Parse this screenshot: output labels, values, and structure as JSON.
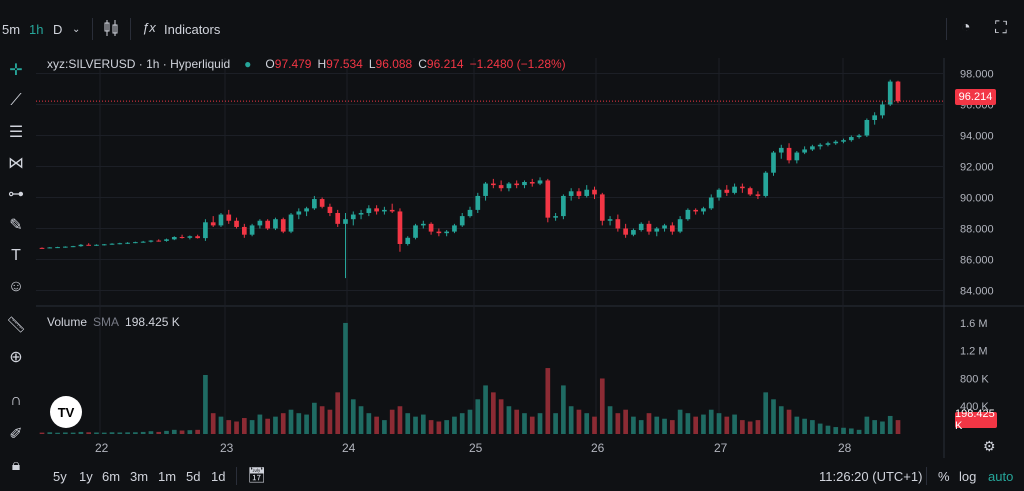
{
  "toolbar": {
    "intervals": [
      "5m",
      "1h",
      "D"
    ],
    "active_interval": "1h",
    "indicators_label": "Indicators"
  },
  "legend": {
    "symbol": "xyz:SILVERUSD · 1h · Hyperliquid",
    "open_label": "O",
    "open": "97.479",
    "high_label": "H",
    "high": "97.534",
    "low_label": "L",
    "low": "96.088",
    "close_label": "C",
    "close": "96.214",
    "change": "−1.2480 (−1.28%)"
  },
  "volume_legend": {
    "label": "Volume",
    "sma_label": "SMA",
    "sma_value": "198.425 K"
  },
  "price_axis": [
    "98.000",
    "96.000",
    "94.000",
    "92.000",
    "90.000",
    "88.000",
    "86.000",
    "84.000"
  ],
  "volume_axis": [
    "1.6 M",
    "1.2 M",
    "800 K",
    "400 K"
  ],
  "last_price_tag": "96.214",
  "volume_tag": "198.425 K",
  "time_axis": [
    "22",
    "23",
    "24",
    "25",
    "26",
    "27",
    "28"
  ],
  "bottom": {
    "ranges": [
      "5y",
      "1y",
      "6m",
      "3m",
      "1m",
      "5d",
      "1d"
    ],
    "clock": "11:26:20 (UTC+1)",
    "percent": "%",
    "log": "log",
    "auto": "auto"
  },
  "logo_text": "TV",
  "colors": {
    "up": "#26a69a",
    "down": "#f23645",
    "up_vol": "#1f6b63",
    "down_vol": "#8c2b34",
    "background": "#0f1114",
    "grid": "#1c1f26"
  },
  "chart_data": {
    "type": "candlestick",
    "symbol": "xyz:SILVERUSD",
    "interval": "1h",
    "price_range": [
      83.0,
      99.0
    ],
    "volume_range": [
      0,
      1700000
    ],
    "x_days": [
      "22",
      "23",
      "24",
      "25",
      "26",
      "27",
      "28"
    ],
    "candles": [
      [
        86.75,
        86.78,
        86.7,
        86.74,
        20000
      ],
      [
        86.74,
        86.8,
        86.72,
        86.78,
        25000
      ],
      [
        86.78,
        86.82,
        86.74,
        86.8,
        18000
      ],
      [
        86.8,
        86.85,
        86.76,
        86.83,
        22000
      ],
      [
        86.83,
        86.88,
        86.8,
        86.86,
        20000
      ],
      [
        86.86,
        87.0,
        86.82,
        86.95,
        30000
      ],
      [
        86.95,
        87.05,
        86.9,
        86.92,
        25000
      ],
      [
        86.92,
        86.98,
        86.88,
        86.95,
        22000
      ],
      [
        86.95,
        87.0,
        86.9,
        86.98,
        20000
      ],
      [
        86.98,
        87.05,
        86.95,
        87.02,
        25000
      ],
      [
        87.02,
        87.08,
        86.98,
        87.05,
        22000
      ],
      [
        87.05,
        87.12,
        87.0,
        87.08,
        24000
      ],
      [
        87.08,
        87.15,
        87.05,
        87.12,
        25000
      ],
      [
        87.12,
        87.2,
        87.08,
        87.15,
        30000
      ],
      [
        87.15,
        87.25,
        87.1,
        87.22,
        40000
      ],
      [
        87.22,
        87.3,
        87.15,
        87.2,
        30000
      ],
      [
        87.2,
        87.35,
        87.15,
        87.3,
        45000
      ],
      [
        87.3,
        87.5,
        87.25,
        87.45,
        60000
      ],
      [
        87.45,
        87.6,
        87.35,
        87.4,
        50000
      ],
      [
        87.4,
        87.55,
        87.3,
        87.5,
        55000
      ],
      [
        87.5,
        87.6,
        87.35,
        87.38,
        60000
      ],
      [
        87.38,
        88.6,
        87.2,
        88.4,
        850000
      ],
      [
        88.4,
        88.8,
        88.1,
        88.2,
        300000
      ],
      [
        88.2,
        89.0,
        88.1,
        88.9,
        250000
      ],
      [
        88.9,
        89.2,
        88.3,
        88.5,
        200000
      ],
      [
        88.5,
        88.7,
        88.0,
        88.1,
        180000
      ],
      [
        88.1,
        88.3,
        87.4,
        87.6,
        230000
      ],
      [
        87.6,
        88.3,
        87.5,
        88.2,
        200000
      ],
      [
        88.2,
        88.6,
        88.0,
        88.5,
        280000
      ],
      [
        88.5,
        88.6,
        87.9,
        88.0,
        220000
      ],
      [
        88.0,
        88.7,
        87.9,
        88.6,
        250000
      ],
      [
        88.6,
        88.7,
        87.7,
        87.8,
        300000
      ],
      [
        87.8,
        89.0,
        87.7,
        88.9,
        350000
      ],
      [
        88.9,
        89.3,
        88.6,
        89.1,
        300000
      ],
      [
        89.1,
        89.4,
        88.8,
        89.3,
        280000
      ],
      [
        89.3,
        90.1,
        89.2,
        89.9,
        450000
      ],
      [
        89.9,
        90.0,
        89.3,
        89.4,
        400000
      ],
      [
        89.4,
        89.6,
        88.8,
        89.0,
        350000
      ],
      [
        89.0,
        89.2,
        88.1,
        88.3,
        600000
      ],
      [
        88.3,
        89.0,
        84.8,
        88.6,
        1600000
      ],
      [
        88.6,
        89.1,
        88.2,
        88.9,
        500000
      ],
      [
        88.9,
        89.2,
        88.6,
        89.0,
        400000
      ],
      [
        89.0,
        89.5,
        88.8,
        89.3,
        300000
      ],
      [
        89.3,
        89.5,
        88.9,
        89.1,
        250000
      ],
      [
        89.1,
        89.4,
        88.9,
        89.2,
        200000
      ],
      [
        89.2,
        89.6,
        89.0,
        89.1,
        350000
      ],
      [
        89.1,
        89.3,
        86.5,
        87.0,
        400000
      ],
      [
        87.0,
        87.5,
        86.9,
        87.4,
        300000
      ],
      [
        87.4,
        88.3,
        87.3,
        88.2,
        250000
      ],
      [
        88.2,
        88.5,
        88.0,
        88.3,
        280000
      ],
      [
        88.3,
        88.4,
        87.6,
        87.8,
        200000
      ],
      [
        87.8,
        88.0,
        87.5,
        87.7,
        180000
      ],
      [
        87.7,
        87.9,
        87.5,
        87.8,
        200000
      ],
      [
        87.8,
        88.3,
        87.7,
        88.2,
        250000
      ],
      [
        88.2,
        89.0,
        88.1,
        88.8,
        300000
      ],
      [
        88.8,
        89.4,
        88.7,
        89.2,
        350000
      ],
      [
        89.2,
        90.3,
        89.0,
        90.1,
        500000
      ],
      [
        90.1,
        91.0,
        89.8,
        90.9,
        700000
      ],
      [
        90.9,
        91.2,
        90.6,
        90.8,
        600000
      ],
      [
        90.8,
        91.1,
        90.4,
        90.6,
        500000
      ],
      [
        90.6,
        91.0,
        90.4,
        90.9,
        400000
      ],
      [
        90.9,
        91.1,
        90.6,
        90.8,
        350000
      ],
      [
        90.8,
        91.1,
        90.6,
        91.0,
        300000
      ],
      [
        91.0,
        91.2,
        90.7,
        90.9,
        250000
      ],
      [
        90.9,
        91.3,
        90.8,
        91.1,
        300000
      ],
      [
        91.1,
        91.2,
        88.4,
        88.7,
        950000
      ],
      [
        88.7,
        89.0,
        88.5,
        88.8,
        300000
      ],
      [
        88.8,
        90.2,
        88.6,
        90.1,
        700000
      ],
      [
        90.1,
        90.6,
        89.8,
        90.4,
        400000
      ],
      [
        90.4,
        90.6,
        89.9,
        90.1,
        350000
      ],
      [
        90.1,
        90.8,
        90.0,
        90.5,
        300000
      ],
      [
        90.5,
        90.7,
        89.9,
        90.2,
        250000
      ],
      [
        90.2,
        90.3,
        88.2,
        88.5,
        800000
      ],
      [
        88.5,
        88.8,
        88.2,
        88.6,
        400000
      ],
      [
        88.6,
        88.9,
        87.8,
        88.0,
        300000
      ],
      [
        88.0,
        88.3,
        87.4,
        87.6,
        350000
      ],
      [
        87.6,
        88.0,
        87.5,
        87.9,
        250000
      ],
      [
        87.9,
        88.4,
        87.8,
        88.3,
        200000
      ],
      [
        88.3,
        88.5,
        87.6,
        87.8,
        300000
      ],
      [
        87.8,
        88.1,
        87.5,
        88.0,
        250000
      ],
      [
        88.0,
        88.3,
        87.8,
        88.2,
        220000
      ],
      [
        88.2,
        88.4,
        87.6,
        87.8,
        200000
      ],
      [
        87.8,
        88.8,
        87.7,
        88.6,
        350000
      ],
      [
        88.6,
        89.3,
        88.5,
        89.2,
        300000
      ],
      [
        89.2,
        89.3,
        88.9,
        89.1,
        250000
      ],
      [
        89.1,
        89.4,
        88.9,
        89.3,
        280000
      ],
      [
        89.3,
        90.2,
        89.2,
        90.0,
        350000
      ],
      [
        90.0,
        90.6,
        89.8,
        90.5,
        300000
      ],
      [
        90.5,
        90.8,
        90.1,
        90.3,
        250000
      ],
      [
        90.3,
        90.9,
        90.2,
        90.7,
        280000
      ],
      [
        90.7,
        90.9,
        90.3,
        90.6,
        200000
      ],
      [
        90.6,
        90.7,
        90.1,
        90.2,
        180000
      ],
      [
        90.2,
        90.4,
        89.9,
        90.1,
        200000
      ],
      [
        90.1,
        91.7,
        90.0,
        91.6,
        600000
      ],
      [
        91.6,
        93.0,
        91.4,
        92.9,
        500000
      ],
      [
        92.9,
        93.4,
        92.5,
        93.2,
        400000
      ],
      [
        93.2,
        93.5,
        92.2,
        92.4,
        350000
      ],
      [
        92.4,
        93.0,
        92.2,
        92.9,
        250000
      ],
      [
        92.9,
        93.3,
        92.8,
        93.1,
        220000
      ],
      [
        93.1,
        93.4,
        93.0,
        93.3,
        200000
      ],
      [
        93.3,
        93.5,
        93.1,
        93.4,
        150000
      ],
      [
        93.4,
        93.6,
        93.3,
        93.5,
        120000
      ],
      [
        93.5,
        93.7,
        93.4,
        93.6,
        100000
      ],
      [
        93.6,
        93.8,
        93.5,
        93.7,
        90000
      ],
      [
        93.7,
        94.0,
        93.6,
        93.9,
        80000
      ],
      [
        93.9,
        94.1,
        93.8,
        94.0,
        60000
      ],
      [
        94.0,
        95.1,
        93.9,
        95.0,
        250000
      ],
      [
        95.0,
        95.5,
        94.7,
        95.3,
        200000
      ],
      [
        95.3,
        96.2,
        95.1,
        96.0,
        180000
      ],
      [
        96.0,
        97.6,
        95.9,
        97.48,
        260000
      ],
      [
        97.48,
        97.53,
        96.09,
        96.21,
        200000
      ]
    ]
  }
}
